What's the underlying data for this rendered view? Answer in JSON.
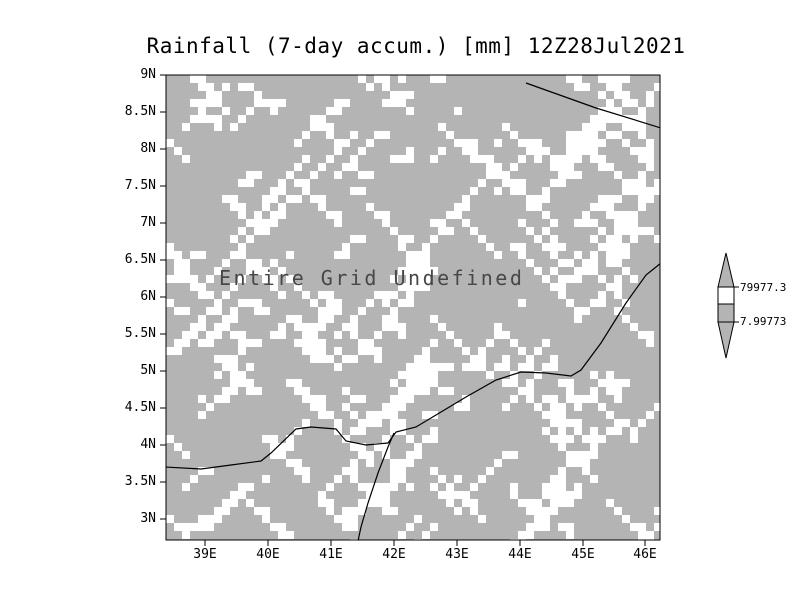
{
  "title": "Rainfall (7-day accum.) [mm] 12Z28Jul2021",
  "overlay_text": "Entire Grid Undefined",
  "axes": {
    "y_ticks": [
      "9N",
      "8.5N",
      "8N",
      "7.5N",
      "7N",
      "6.5N",
      "6N",
      "5.5N",
      "5N",
      "4.5N",
      "4N",
      "3.5N",
      "3N"
    ],
    "x_ticks": [
      "39E",
      "40E",
      "41E",
      "42E",
      "43E",
      "44E",
      "45E",
      "46E"
    ]
  },
  "colorbar": {
    "labels": [
      "79977.3",
      "7.99773"
    ]
  },
  "colors": {
    "grid_gray": "#b4b4b4",
    "speckle_white": "#ffffff",
    "line_black": "#000000"
  },
  "chart_data": {
    "type": "heatmap",
    "title": "Rainfall (7-day accum.) [mm] 12Z28Jul2021",
    "xlabel": "",
    "ylabel": "",
    "x_tick_labels": [
      "39E",
      "40E",
      "41E",
      "42E",
      "43E",
      "44E",
      "45E",
      "46E"
    ],
    "y_tick_labels": [
      "9N",
      "8.5N",
      "8N",
      "7.5N",
      "7N",
      "6.5N",
      "6N",
      "5.5N",
      "5N",
      "4.5N",
      "4N",
      "3.5N",
      "3N"
    ],
    "values": null,
    "status": "Entire Grid Undefined",
    "annotations": [
      "Entire Grid Undefined"
    ],
    "colorbar_labels": [
      "79977.3",
      "7.99773"
    ],
    "legend": "none",
    "grid": "off"
  }
}
